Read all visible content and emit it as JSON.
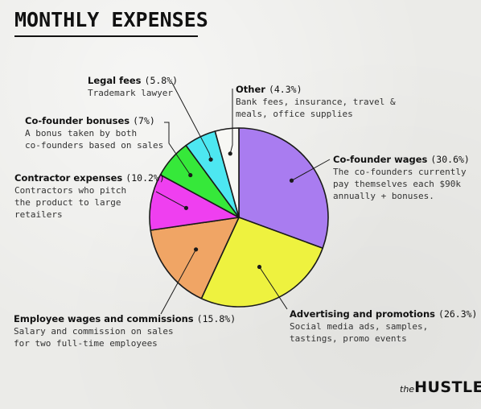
{
  "header": {
    "title": "MONTHLY EXPENSES"
  },
  "chart_data": {
    "type": "pie",
    "title": "MONTHLY EXPENSES",
    "slices": [
      {
        "name": "Co-founder wages",
        "pct_label": "(30.6%)",
        "value": 30.6,
        "color": "#a97cf0",
        "description": "The co-founders currently pay themselves each $90k annually + bonuses."
      },
      {
        "name": "Advertising and promotions",
        "pct_label": "(26.3%)",
        "value": 26.3,
        "color": "#eef23f",
        "description": "Social media ads, samples, tastings, promo events"
      },
      {
        "name": "Employee wages and commissions",
        "pct_label": "(15.8%)",
        "value": 15.8,
        "color": "#f0a565",
        "description": "Salary and commission on sales for two full-time employees"
      },
      {
        "name": "Contractor expenses",
        "pct_label": "(10.2%)",
        "value": 10.2,
        "color": "#ef3ff0",
        "description": "Contractors who pitch the product to large retailers"
      },
      {
        "name": "Co-founder bonuses",
        "pct_label": "(7%)",
        "value": 7.0,
        "color": "#36e83a",
        "description": "A bonus taken by both co-founders based on sales"
      },
      {
        "name": "Legal fees",
        "pct_label": "(5.8%)",
        "value": 5.8,
        "color": "#4de7f1",
        "description": "Trademark lawyer"
      },
      {
        "name": "Other",
        "pct_label": "(4.3%)",
        "value": 4.3,
        "color": "#f7f7f4",
        "description": "Bank fees, insurance, travel & meals, office supplies"
      }
    ]
  },
  "labels": {
    "legal": {
      "title": "Legal fees",
      "pct": "(5.8%)",
      "lines": [
        "Trademark lawyer"
      ]
    },
    "other": {
      "title": "Other",
      "pct": "(4.3%)",
      "lines": [
        "Bank fees, insurance, travel &",
        "meals, office supplies"
      ]
    },
    "bonuses": {
      "title": "Co-founder bonuses",
      "pct": "(7%)",
      "lines": [
        "A bonus taken by both",
        "co-founders based on sales"
      ]
    },
    "contractor": {
      "title": "Contractor expenses",
      "pct": "(10.2%)",
      "lines": [
        "Contractors who pitch",
        "the product to large",
        "retailers"
      ]
    },
    "wages": {
      "title": "Co-founder wages",
      "pct": "(30.6%)",
      "lines": [
        "The co-founders currently",
        "pay themselves each $90k",
        "annually + bonuses."
      ]
    },
    "employee": {
      "title": "Employee wages and commissions",
      "pct": "(15.8%)",
      "lines": [
        "Salary and commission on sales",
        "for two full-time employees"
      ]
    },
    "advertising": {
      "title": "Advertising and promotions",
      "pct": "(26.3%)",
      "lines": [
        "Social media ads, samples,",
        "tastings, promo events"
      ]
    }
  },
  "logo": {
    "small": "the",
    "big": "HUSTLE"
  },
  "colors": {
    "outline": "#1a1a1a",
    "background": "#ebebe8"
  }
}
